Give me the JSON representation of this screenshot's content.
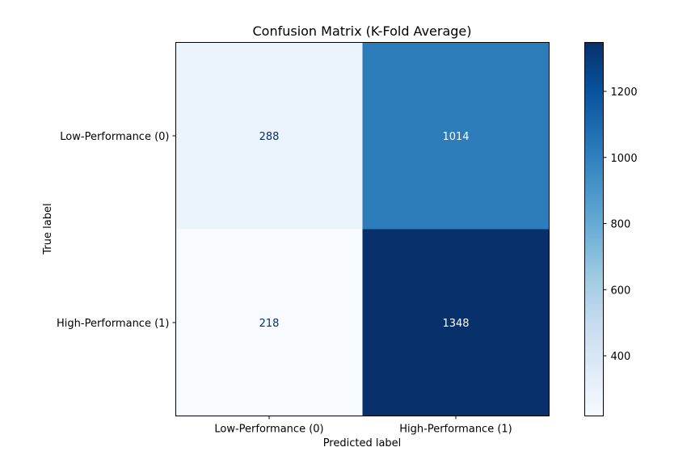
{
  "chart_data": {
    "type": "heatmap",
    "title": "Confusion Matrix (K-Fold Average)",
    "xlabel": "Predicted label",
    "ylabel": "True label",
    "x_categories": [
      "Low-Performance (0)",
      "High-Performance (1)"
    ],
    "y_categories": [
      "Low-Performance (0)",
      "High-Performance (1)"
    ],
    "values": [
      [
        288,
        1014
      ],
      [
        218,
        1348
      ]
    ],
    "colormap": "Blues",
    "colorbar": {
      "range": [
        218,
        1348
      ],
      "ticks": [
        400,
        600,
        800,
        1000,
        1200
      ],
      "tick_labels": [
        "400",
        "600",
        "800",
        "1000",
        "1200"
      ]
    },
    "colors": {
      "low": "#f7fbff",
      "high": "#08306b",
      "text_on_light": "#08306b",
      "text_on_dark": "#ffffff"
    }
  }
}
